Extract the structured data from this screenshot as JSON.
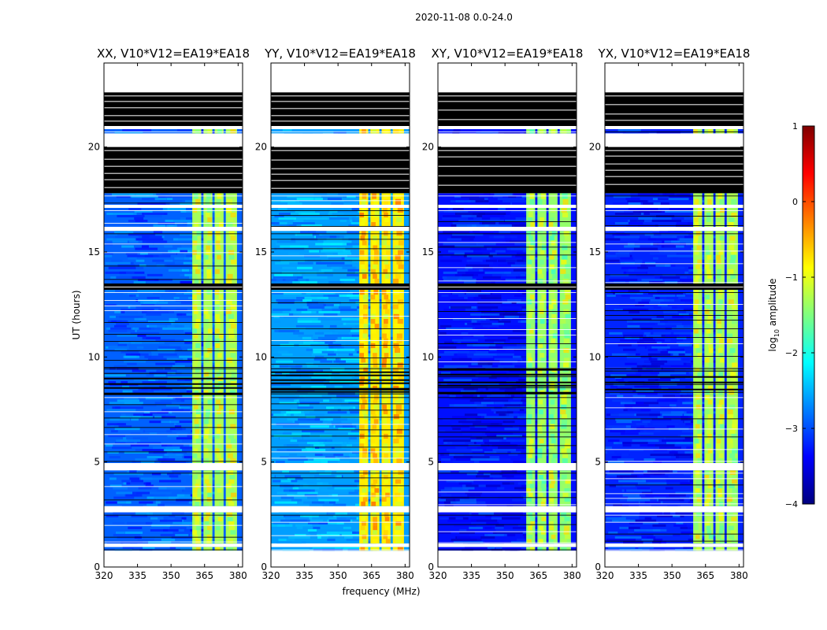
{
  "figure_title": "2020-11-08 0.0-24.0",
  "chart_data": {
    "type": "heatmap",
    "suptitle": "2020-11-08 0.0-24.0",
    "xlabel": "frequency (MHz)",
    "ylabel": "UT (hours)",
    "xlim": [
      320,
      382
    ],
    "ylim": [
      0,
      24
    ],
    "xticks": [
      320,
      335,
      350,
      365,
      380
    ],
    "yticks": [
      0,
      5,
      10,
      15,
      20
    ],
    "colorbar": {
      "label": "log$_{10}$ amplitude",
      "label_main": "log",
      "label_sub": "10",
      "label_rest": " amplitude",
      "range": [
        -4,
        1
      ],
      "ticks": [
        1,
        0,
        -1,
        -2,
        -3,
        -4
      ],
      "tick_labels": [
        "1",
        "0",
        "−1",
        "−2",
        "−3",
        "−4"
      ],
      "colormap": "jet",
      "colors": [
        "#00007f",
        "#0000ff",
        "#007fff",
        "#00ffff",
        "#7fff7f",
        "#ffff00",
        "#ff7f00",
        "#ff0000",
        "#7f0000"
      ]
    },
    "flagged_color": "#000000",
    "no_data_color": "#ffffff",
    "band_freq_range": [
      359.5,
      379.5
    ],
    "band_channels": [
      [
        359.5,
        363.5
      ],
      [
        364.5,
        368.5
      ],
      [
        369.5,
        373.5
      ],
      [
        374.5,
        379.5
      ]
    ],
    "time_segments": [
      {
        "start": 0.0,
        "end": 0.78,
        "state": "no_data"
      },
      {
        "start": 0.78,
        "end": 0.95,
        "state": "data"
      },
      {
        "start": 0.95,
        "end": 1.12,
        "state": "no_data"
      },
      {
        "start": 1.12,
        "end": 2.6,
        "state": "data"
      },
      {
        "start": 2.6,
        "end": 2.9,
        "state": "no_data"
      },
      {
        "start": 2.9,
        "end": 4.6,
        "state": "data"
      },
      {
        "start": 4.6,
        "end": 4.95,
        "state": "no_data"
      },
      {
        "start": 4.95,
        "end": 8.2,
        "state": "data"
      },
      {
        "start": 8.2,
        "end": 9.5,
        "state": "partial_flagged"
      },
      {
        "start": 9.5,
        "end": 13.2,
        "state": "data"
      },
      {
        "start": 13.2,
        "end": 13.5,
        "state": "flagged"
      },
      {
        "start": 13.5,
        "end": 16.0,
        "state": "data"
      },
      {
        "start": 16.0,
        "end": 16.2,
        "state": "no_data"
      },
      {
        "start": 16.2,
        "end": 17.1,
        "state": "data"
      },
      {
        "start": 17.1,
        "end": 17.25,
        "state": "no_data"
      },
      {
        "start": 17.25,
        "end": 17.8,
        "state": "data"
      },
      {
        "start": 17.8,
        "end": 20.0,
        "state": "flagged"
      },
      {
        "start": 20.0,
        "end": 20.65,
        "state": "no_data"
      },
      {
        "start": 20.65,
        "end": 20.85,
        "state": "data"
      },
      {
        "start": 20.85,
        "end": 21.0,
        "state": "no_data"
      },
      {
        "start": 21.0,
        "end": 22.6,
        "state": "flagged"
      },
      {
        "start": 22.6,
        "end": 24.0,
        "state": "no_data"
      }
    ],
    "panels": [
      {
        "title": "XX, V10*V12=EA19*EA18",
        "background_log_amp": -2.9,
        "band_log_amp": -1.3
      },
      {
        "title": "YY, V10*V12=EA19*EA18",
        "background_log_amp": -2.6,
        "band_log_amp": -0.8
      },
      {
        "title": "XY, V10*V12=EA19*EA18",
        "background_log_amp": -3.3,
        "band_log_amp": -1.4
      },
      {
        "title": "YX, V10*V12=EA19*EA18",
        "background_log_amp": -3.2,
        "band_log_amp": -1.3
      }
    ]
  }
}
